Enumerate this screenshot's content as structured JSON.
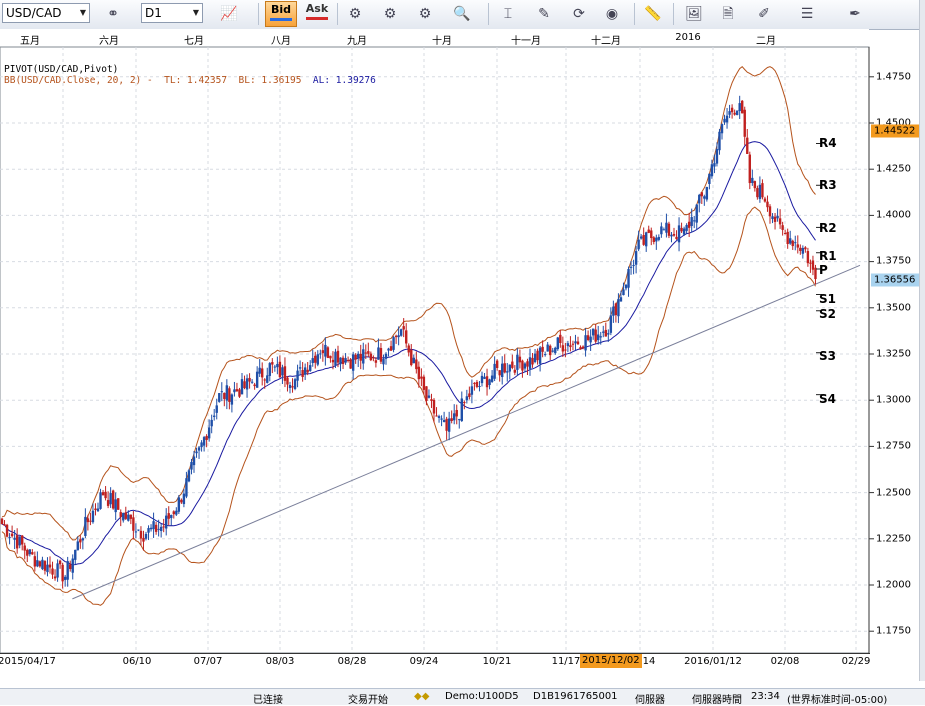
{
  "toolbar": {
    "symbol": "USD/CAD",
    "timeframe": "D1",
    "bid_label": "Bid",
    "ask_label": "Ask"
  },
  "month_labels": [
    "五月",
    "六月",
    "七月",
    "八月",
    "九月",
    "十月",
    "十一月",
    "十二月",
    "2016",
    "二月"
  ],
  "date_labels": [
    "2015/04/17",
    "06/10",
    "07/07",
    "08/03",
    "08/28",
    "09/24",
    "10/21",
    "11/17",
    "2015/12/02",
    "14",
    "2016/01/12",
    "02/08",
    "02/29"
  ],
  "crosshair_date": "2015/12/02",
  "indicators": {
    "pivot_label": "PIVOT(USD/CAD,Pivot)",
    "bb_label": "BB(USD/CAD.Close, 20, 2) -",
    "tl_text": "TL: 1.42357",
    "bl_text": "BL: 1.36195",
    "al_text": "AL: 1.39276"
  },
  "pivot_labels": [
    "R4",
    "R3",
    "R2",
    "R1",
    "P",
    "S1",
    "S2",
    "S3",
    "S4"
  ],
  "pivot_levels": [
    1.4389,
    1.4163,
    1.3935,
    1.3798,
    1.371,
    1.3572,
    1.3484,
    1.3257,
    1.303
  ],
  "price_axis": [
    "1.4750",
    "1.4500",
    "1.4250",
    "1.4000",
    "1.3750",
    "1.3500",
    "1.3250",
    "1.3000",
    "1.2750",
    "1.2500",
    "1.2250",
    "1.2000",
    "1.1750"
  ],
  "price_tags": {
    "high_price": "1.44522",
    "current_price": "1.36556"
  },
  "status": {
    "connection": "已连接",
    "trading": "交易开始",
    "account": "Demo:U100D5",
    "server_id": "D1B1961765001",
    "server_label": "伺服器",
    "server_time_label": "伺服器時間",
    "time": "23:34",
    "timezone": "(世界标准时间-05:00)"
  },
  "colors": {
    "up": "#1f4fa8",
    "down": "#c0201f",
    "bands": "#b5531c",
    "mid": "#1a1aa0",
    "trend": "#7a7f9a",
    "accent": "#f39a1e"
  },
  "chart_data": {
    "type": "candlestick",
    "symbol": "USD/CAD",
    "timeframe": "D1",
    "x_range": [
      "2015/04/17",
      "2016/02/29"
    ],
    "ylim": [
      1.16,
      1.49
    ],
    "grid": true,
    "anchors": [
      {
        "x": 0,
        "close": 1.233
      },
      {
        "x": 12,
        "close": 1.215
      },
      {
        "x": 25,
        "close": 1.205
      },
      {
        "x": 33,
        "close": 1.232
      },
      {
        "x": 40,
        "close": 1.25
      },
      {
        "x": 48,
        "close": 1.238
      },
      {
        "x": 56,
        "close": 1.228
      },
      {
        "x": 64,
        "close": 1.232
      },
      {
        "x": 70,
        "close": 1.245
      },
      {
        "x": 78,
        "close": 1.272
      },
      {
        "x": 86,
        "close": 1.302
      },
      {
        "x": 96,
        "close": 1.307
      },
      {
        "x": 106,
        "close": 1.318
      },
      {
        "x": 116,
        "close": 1.311
      },
      {
        "x": 126,
        "close": 1.328
      },
      {
        "x": 138,
        "close": 1.322
      },
      {
        "x": 150,
        "close": 1.325
      },
      {
        "x": 158,
        "close": 1.338
      },
      {
        "x": 168,
        "close": 1.3
      },
      {
        "x": 176,
        "close": 1.283
      },
      {
        "x": 186,
        "close": 1.305
      },
      {
        "x": 198,
        "close": 1.318
      },
      {
        "x": 210,
        "close": 1.322
      },
      {
        "x": 220,
        "close": 1.33
      },
      {
        "x": 232,
        "close": 1.333
      },
      {
        "x": 240,
        "close": 1.34
      },
      {
        "x": 252,
        "close": 1.383
      },
      {
        "x": 260,
        "close": 1.392
      },
      {
        "x": 270,
        "close": 1.39
      },
      {
        "x": 278,
        "close": 1.412
      },
      {
        "x": 286,
        "close": 1.452
      },
      {
        "x": 292,
        "close": 1.462
      },
      {
        "x": 296,
        "close": 1.418
      },
      {
        "x": 302,
        "close": 1.41
      },
      {
        "x": 308,
        "close": 1.392
      },
      {
        "x": 312,
        "close": 1.388
      },
      {
        "x": 318,
        "close": 1.381
      },
      {
        "x": 322,
        "close": 1.365
      }
    ],
    "pivot_points": {
      "R4": 1.4389,
      "R3": 1.4163,
      "R2": 1.3935,
      "R1": 1.3798,
      "P": 1.371,
      "S1": 1.3572,
      "S2": 1.3484,
      "S3": 1.3257,
      "S4": 1.303
    },
    "bollinger": {
      "period": 20,
      "deviations": 2,
      "TL": 1.42357,
      "BL": 1.36195,
      "AL": 1.39276
    },
    "trend_line": [
      {
        "date": "2015/05/26",
        "price": 1.1925
      },
      {
        "date": "2016/02/19",
        "price": 1.36
      }
    ],
    "current_price": 1.36556,
    "high_price": 1.44522
  }
}
